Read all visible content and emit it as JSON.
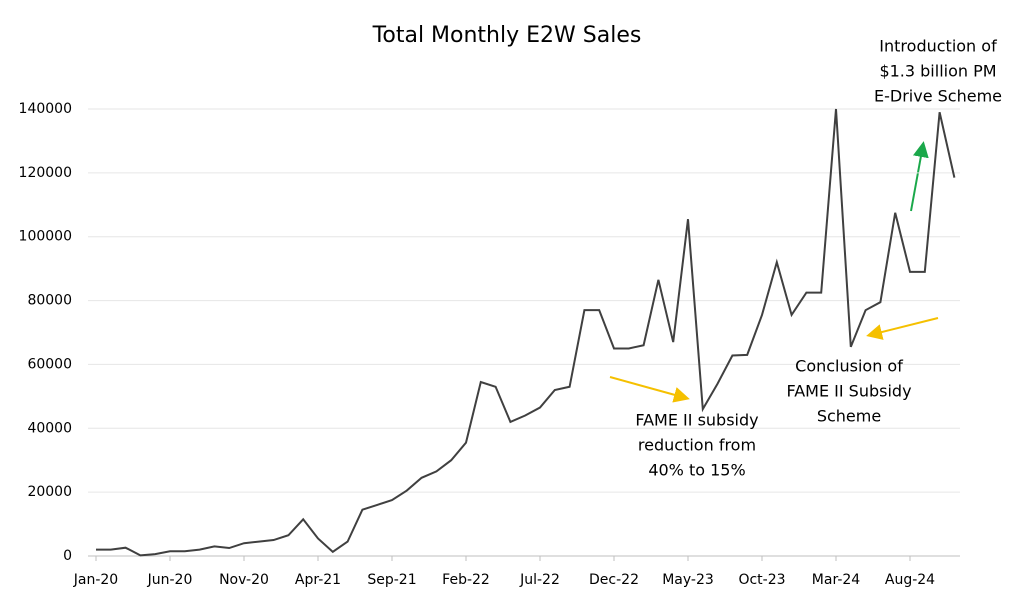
{
  "chart_data": {
    "type": "line",
    "title": "Total Monthly E2W Sales",
    "categories": [
      "Jan-20",
      null,
      null,
      null,
      null,
      "Jun-20",
      null,
      null,
      null,
      null,
      "Nov-20",
      null,
      null,
      null,
      null,
      "Apr-21",
      null,
      null,
      null,
      null,
      "Sep-21",
      null,
      null,
      null,
      null,
      "Feb-22",
      null,
      null,
      null,
      null,
      "Jul-22",
      null,
      null,
      null,
      null,
      "Dec-22",
      null,
      null,
      null,
      null,
      "May-23",
      null,
      null,
      null,
      null,
      "Oct-23",
      null,
      null,
      null,
      null,
      "Mar-24",
      null,
      null,
      null,
      null,
      "Aug-24",
      null,
      null,
      null
    ],
    "series": [
      {
        "name": "Total Monthly E2W Sales",
        "color": "#404040",
        "values": [
          2000,
          2000,
          2600,
          200,
          600,
          1500,
          1500,
          2000,
          3000,
          2500,
          4000,
          4500,
          5000,
          6500,
          11500,
          5500,
          1300,
          4500,
          14500,
          16000,
          17500,
          20500,
          24500,
          26500,
          30000,
          35500,
          54500,
          53000,
          42000,
          44000,
          46500,
          52000,
          53000,
          77000,
          77000,
          65000,
          65000,
          66000,
          86500,
          67000,
          105500,
          46000,
          54000,
          62800,
          63000,
          75500,
          92000,
          75500,
          82500,
          82500,
          140000,
          65500,
          77000,
          79500,
          107500,
          89000,
          89000,
          139000,
          118500
        ]
      }
    ],
    "ylim": [
      0,
      140000
    ],
    "yticks": [
      0,
      20000,
      40000,
      60000,
      80000,
      100000,
      120000,
      140000
    ],
    "grid": true,
    "annotations": [
      {
        "lines": [
          "FAME II subsidy",
          "reduction from",
          "40% to 15%"
        ]
      },
      {
        "lines": [
          "Conclusion of",
          "FAME II Subsidy",
          "Scheme"
        ]
      },
      {
        "lines": [
          "Introduction of",
          "$1.3 billion PM",
          "E-Drive Scheme"
        ]
      }
    ]
  }
}
